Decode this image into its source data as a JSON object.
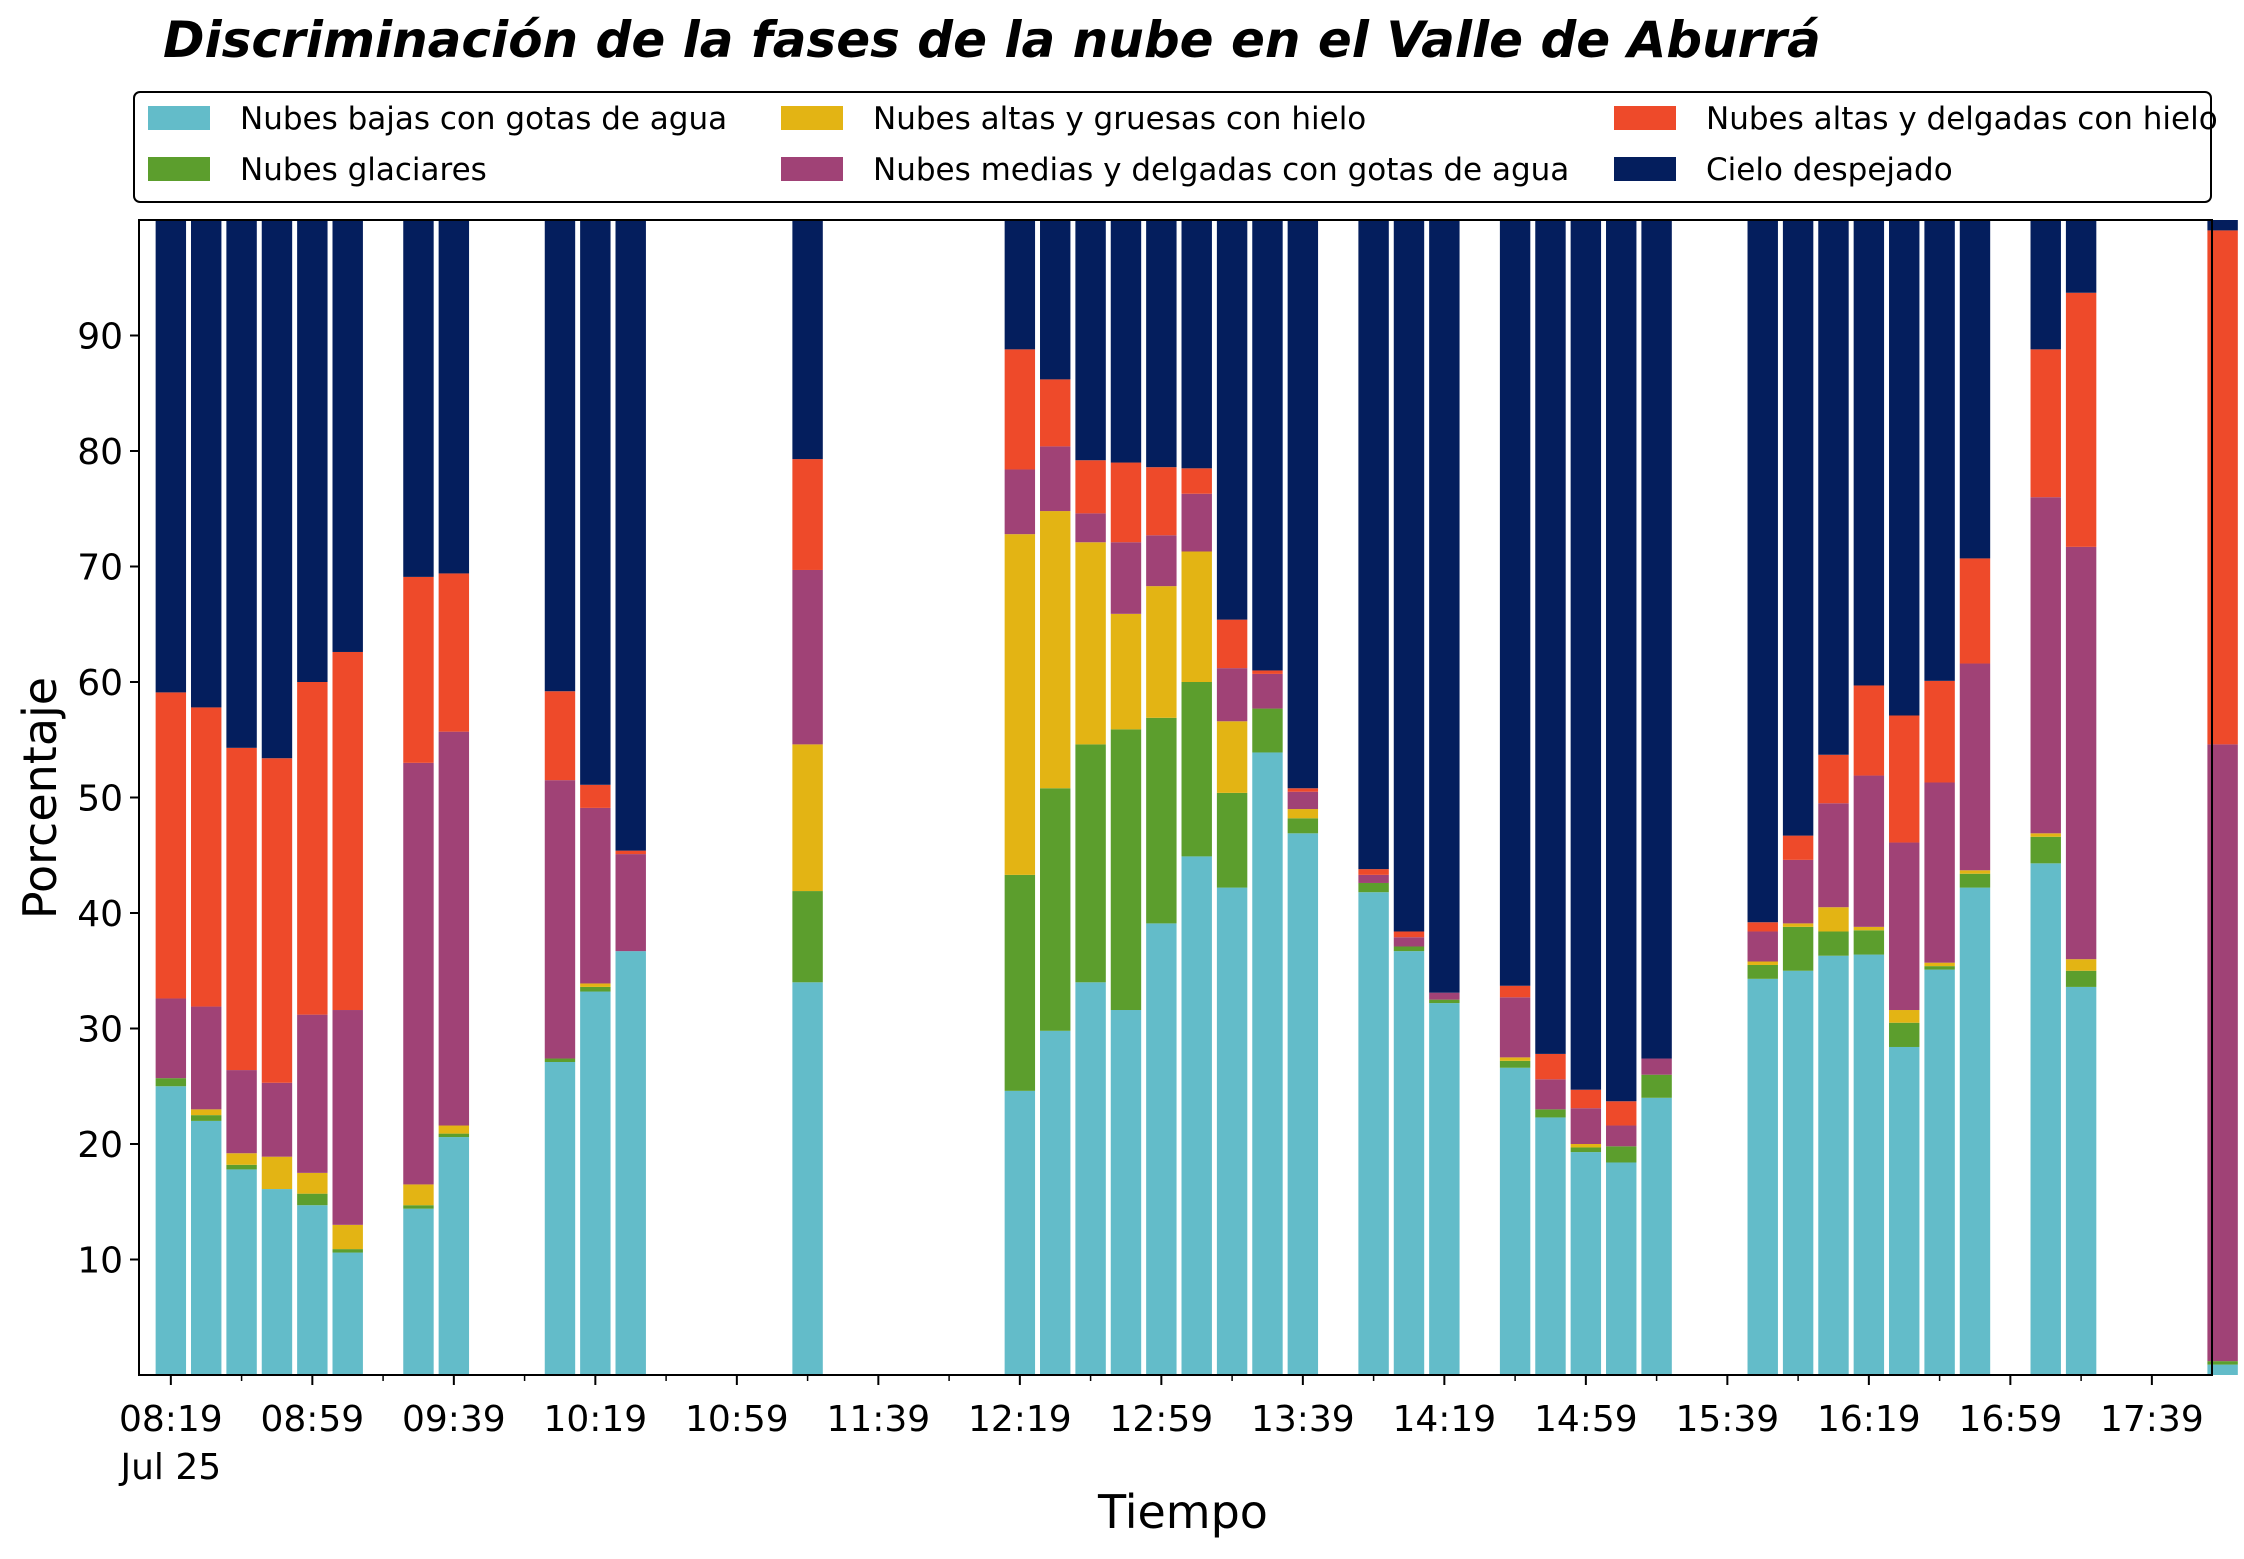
{
  "chart_data": {
    "type": "bar",
    "stacked": true,
    "title": "Discriminación de la fases de la nube en el Valle de Aburrá",
    "xlabel": "Tiempo",
    "ylabel": "Porcentaje",
    "ylim": [
      0,
      100
    ],
    "yticks": [
      10,
      20,
      30,
      40,
      50,
      60,
      70,
      80,
      90
    ],
    "xlim_minutes": [
      490,
      1076
    ],
    "xticks": [
      {
        "minute": 499,
        "label": "08:19",
        "sublabel": "Jul 25"
      },
      {
        "minute": 539,
        "label": "08:59"
      },
      {
        "minute": 579,
        "label": "09:39"
      },
      {
        "minute": 619,
        "label": "10:19"
      },
      {
        "minute": 659,
        "label": "10:59"
      },
      {
        "minute": 699,
        "label": "11:39"
      },
      {
        "minute": 739,
        "label": "12:19"
      },
      {
        "minute": 779,
        "label": "12:59"
      },
      {
        "minute": 819,
        "label": "13:39"
      },
      {
        "minute": 859,
        "label": "14:19"
      },
      {
        "minute": 899,
        "label": "14:59"
      },
      {
        "minute": 939,
        "label": "15:39"
      },
      {
        "minute": 979,
        "label": "16:19"
      },
      {
        "minute": 1019,
        "label": "16:59"
      },
      {
        "minute": 1059,
        "label": "17:39"
      }
    ],
    "legend_position": "top",
    "x": [
      "08:19",
      "08:29",
      "08:39",
      "08:49",
      "08:59",
      "09:09",
      "09:29",
      "09:39",
      "10:09",
      "10:19",
      "10:29",
      "11:19",
      "12:19",
      "12:29",
      "12:39",
      "12:49",
      "12:59",
      "13:09",
      "13:19",
      "13:29",
      "13:39",
      "13:59",
      "14:09",
      "14:19",
      "14:39",
      "14:49",
      "14:59",
      "15:09",
      "15:19",
      "15:49",
      "15:59",
      "16:09",
      "16:19",
      "16:29",
      "16:39",
      "16:49",
      "17:09",
      "17:19",
      "17:59"
    ],
    "series": [
      {
        "name": "Nubes bajas con gotas de agua",
        "color": "#63bcc9",
        "values": [
          25.0,
          22.0,
          17.8,
          16.1,
          14.7,
          10.6,
          14.4,
          20.6,
          27.1,
          33.2,
          36.7,
          34.0,
          24.6,
          29.8,
          34.0,
          31.6,
          39.1,
          44.9,
          42.2,
          53.9,
          46.9,
          41.8,
          36.7,
          32.2,
          26.6,
          22.3,
          19.3,
          18.4,
          24.0,
          34.3,
          35.0,
          36.3,
          36.4,
          28.4,
          35.1,
          42.2,
          44.3,
          33.6,
          0.9
        ]
      },
      {
        "name": "Nubes glaciares",
        "color": "#5c9e2d",
        "values": [
          0.7,
          0.5,
          0.4,
          0.0,
          1.0,
          0.3,
          0.3,
          0.3,
          0.3,
          0.4,
          0.0,
          7.9,
          18.7,
          21.0,
          20.6,
          24.3,
          17.8,
          15.1,
          8.2,
          3.8,
          1.3,
          0.8,
          0.4,
          0.3,
          0.6,
          0.7,
          0.4,
          1.4,
          2.0,
          1.2,
          3.8,
          2.1,
          2.1,
          2.1,
          0.3,
          1.2,
          2.3,
          1.4,
          0.3
        ]
      },
      {
        "name": "Nubes altas y gruesas con hielo",
        "color": "#e3b414",
        "values": [
          0.0,
          0.5,
          1.0,
          2.8,
          1.8,
          2.1,
          1.8,
          0.7,
          0.0,
          0.3,
          0.0,
          12.7,
          29.5,
          24.0,
          17.5,
          10.0,
          11.4,
          11.3,
          6.2,
          0.0,
          0.8,
          0.0,
          0.0,
          0.0,
          0.3,
          0.0,
          0.3,
          0.0,
          0.0,
          0.3,
          0.3,
          2.1,
          0.3,
          1.1,
          0.3,
          0.3,
          0.3,
          1.0,
          0.0
        ]
      },
      {
        "name": "Nubes medias y delgadas con gotas de agua",
        "color": "#a04276",
        "values": [
          6.9,
          8.9,
          7.2,
          6.4,
          13.7,
          18.6,
          36.5,
          34.1,
          24.1,
          15.2,
          8.4,
          15.1,
          5.6,
          5.6,
          2.5,
          6.2,
          4.4,
          5.0,
          4.6,
          3.0,
          1.5,
          0.7,
          0.8,
          0.6,
          5.2,
          2.6,
          3.1,
          1.8,
          1.4,
          2.6,
          5.5,
          9.0,
          13.1,
          14.5,
          15.6,
          17.9,
          29.1,
          35.7,
          53.4
        ]
      },
      {
        "name": "Nubes altas y delgadas con hielo",
        "color": "#ee4a2a",
        "values": [
          26.5,
          25.9,
          27.9,
          28.1,
          28.8,
          31.0,
          16.1,
          13.7,
          7.7,
          2.0,
          0.3,
          9.6,
          10.4,
          5.8,
          4.6,
          6.9,
          5.9,
          2.2,
          4.2,
          0.3,
          0.3,
          0.5,
          0.5,
          0.0,
          1.0,
          2.2,
          1.6,
          2.1,
          0.0,
          0.8,
          2.1,
          4.2,
          7.8,
          11.0,
          8.8,
          9.1,
          12.8,
          22.0,
          44.5
        ]
      },
      {
        "name": "Cielo despejado",
        "color": "#041e5d",
        "values": [
          40.9,
          42.2,
          45.7,
          46.6,
          40.0,
          37.4,
          30.9,
          30.6,
          40.8,
          48.9,
          54.6,
          20.7,
          11.2,
          13.8,
          20.8,
          21.0,
          21.4,
          21.5,
          34.6,
          39.0,
          49.2,
          56.2,
          61.6,
          66.9,
          66.3,
          72.2,
          75.3,
          76.3,
          72.6,
          60.8,
          53.3,
          46.3,
          40.3,
          42.9,
          39.9,
          29.3,
          11.2,
          6.3,
          0.9
        ]
      }
    ]
  }
}
